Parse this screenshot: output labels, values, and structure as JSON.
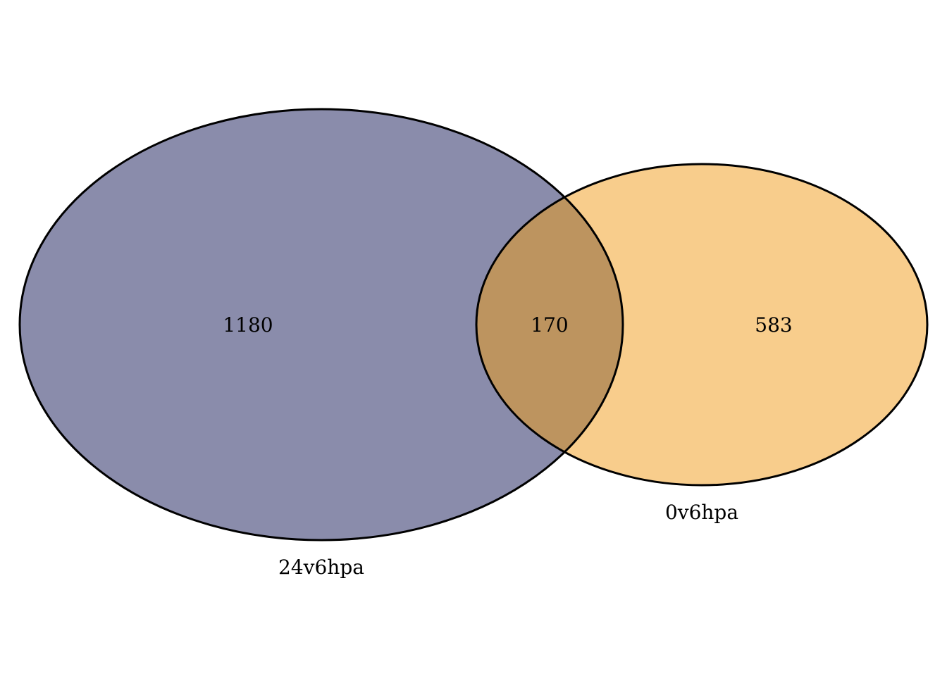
{
  "venn": {
    "sets": [
      {
        "label": "24v6hpa",
        "count": "1180",
        "color": "#8a8cab"
      },
      {
        "label": "0v6hpa",
        "count": "583",
        "color": "#f8cd8c"
      }
    ],
    "intersection": {
      "count": "170",
      "color": "#bd945f"
    },
    "outline_color": "#000000"
  }
}
